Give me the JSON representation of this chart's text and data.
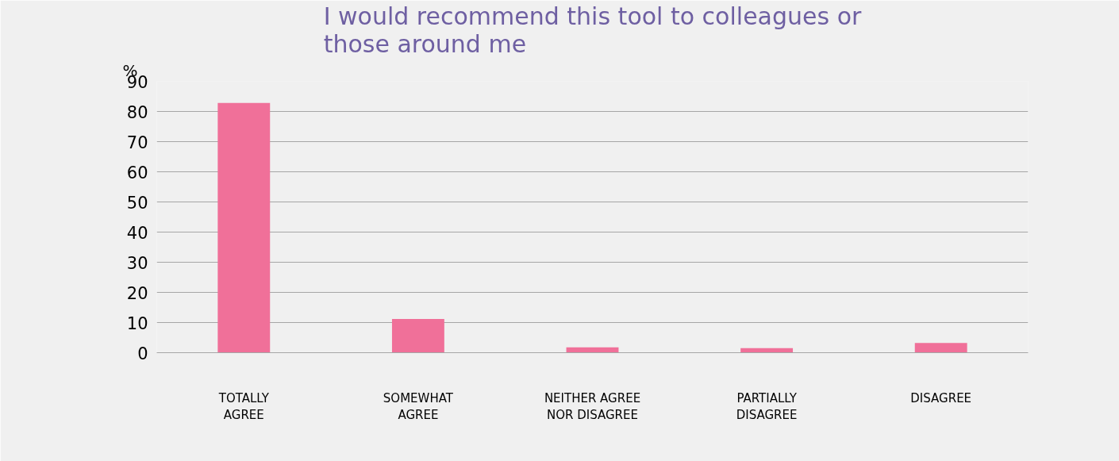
{
  "chart_data": {
    "type": "bar",
    "title": "I would recommend this tool to colleagues or those around me",
    "ylabel": "%",
    "categories": [
      "TOTALLY AGREE",
      "SOMEWHAT AGREE",
      "NEITHER AGREE NOR DISAGREE",
      "PARTIALLY DISAGREE",
      "DISAGREE"
    ],
    "values": [
      82.8,
      11.2,
      1.8,
      1.5,
      3.2
    ],
    "color": "#f07099",
    "ylim": [
      0,
      90
    ],
    "yticks": [
      0,
      10,
      20,
      30,
      40,
      50,
      60,
      70,
      80,
      90
    ],
    "grid": "y"
  }
}
